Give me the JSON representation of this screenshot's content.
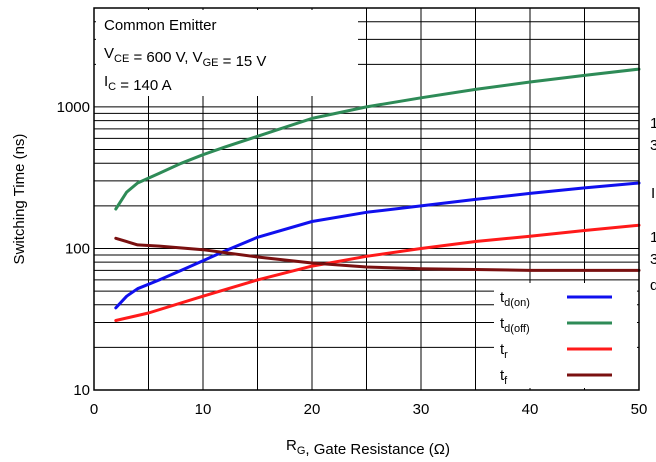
{
  "chart_data": {
    "type": "line",
    "xlabel": {
      "main": "R",
      "sub": "G",
      "rest": ", Gate Resistance (Ω)"
    },
    "ylabel": "Switching Time (ns)",
    "xlim": [
      0,
      50
    ],
    "ylim": [
      10,
      5000
    ],
    "yscale": "log",
    "grid": true,
    "x_ticks": [
      "0",
      "10",
      "20",
      "30",
      "40",
      "50"
    ],
    "y_ticks": [
      {
        "value": 10,
        "label": "10"
      },
      {
        "value": 100,
        "label": "100"
      },
      {
        "value": 1000,
        "label": "1000"
      }
    ],
    "annotation": {
      "line1": "Common Emitter",
      "line2": [
        {
          "t": "V",
          "sub": false
        },
        {
          "t": "CE",
          "sub": true
        },
        {
          "t": " = 600 V, V",
          "sub": false
        },
        {
          "t": "GE",
          "sub": true
        },
        {
          "t": " = 15 V",
          "sub": false
        }
      ],
      "line3": [
        {
          "t": "I",
          "sub": false
        },
        {
          "t": "C",
          "sub": true
        },
        {
          "t": " = 140 A",
          "sub": false
        }
      ]
    },
    "legend_position": "bottom-right",
    "series": [
      {
        "name": "td(on)",
        "label_main": "t",
        "label_sub": "d(on)",
        "color": "#1010ee",
        "x": [
          2,
          3,
          4,
          6,
          8,
          10,
          12,
          15,
          20,
          25,
          30,
          35,
          40,
          45,
          50
        ],
        "y": [
          38,
          46,
          52,
          60,
          70,
          82,
          96,
          120,
          155,
          180,
          200,
          222,
          245,
          268,
          290
        ]
      },
      {
        "name": "td(off)",
        "label_main": "t",
        "label_sub": "d(off)",
        "color": "#2e8b57",
        "x": [
          2,
          3,
          4,
          6,
          8,
          10,
          12,
          15,
          20,
          25,
          30,
          35,
          40,
          45,
          50
        ],
        "y": [
          190,
          250,
          290,
          340,
          400,
          460,
          520,
          620,
          830,
          1000,
          1160,
          1330,
          1500,
          1670,
          1850
        ]
      },
      {
        "name": "tr",
        "label_main": "t",
        "label_sub": "r",
        "color": "#ff1a1a",
        "x": [
          2,
          5,
          10,
          15,
          20,
          25,
          30,
          35,
          40,
          45,
          50
        ],
        "y": [
          31,
          35,
          46,
          60,
          75,
          88,
          100,
          112,
          122,
          134,
          146
        ]
      },
      {
        "name": "tf",
        "label_main": "t",
        "label_sub": "f",
        "color": "#7a1010",
        "x": [
          2,
          4,
          6,
          10,
          15,
          20,
          25,
          30,
          35,
          40,
          45,
          50
        ],
        "y": [
          118,
          106,
          104,
          98,
          87,
          79,
          74,
          72,
          71,
          70,
          70,
          70
        ]
      }
    ]
  },
  "edge_fragments": [
    "1",
    "3",
    "I",
    "1",
    "3",
    "d"
  ]
}
